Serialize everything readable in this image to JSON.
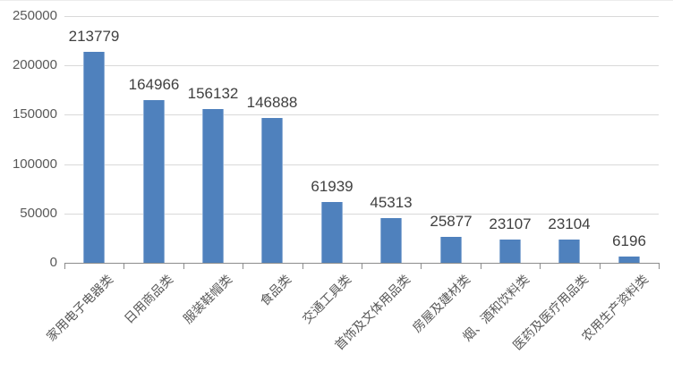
{
  "chart_data": {
    "type": "bar",
    "title": "",
    "categories": [
      "家用电子电器类",
      "日用商品类",
      "服装鞋帽类",
      "食品类",
      "交通工具类",
      "首饰及文体用品类",
      "房屋及建材类",
      "烟、酒和饮料类",
      "医药及医疗用品类",
      "农用生产资料类"
    ],
    "values": [
      213779,
      164966,
      156132,
      146888,
      61939,
      45313,
      25877,
      23107,
      23104,
      6196
    ],
    "data_labels": [
      "213779",
      "164966",
      "156132",
      "146888",
      "61939",
      "45313",
      "25877",
      "23107",
      "23104",
      "6196"
    ],
    "xlabel": "",
    "ylabel": "",
    "ylim": [
      0,
      250000
    ],
    "y_ticks": [
      0,
      50000,
      100000,
      150000,
      200000,
      250000
    ],
    "y_tick_labels": [
      "0",
      "50000",
      "100000",
      "150000",
      "200000",
      "250000"
    ],
    "grid": "horizontal",
    "legend": "none",
    "colors": {
      "bar_fill": "#4f81bd",
      "bar_edge": "#8fafd6",
      "gridline": "#d9d9d9",
      "axis_line": "#8c8c8c",
      "data_label_text": "#404040",
      "tick_label_text": "#595959",
      "background": "#ffffff"
    }
  }
}
